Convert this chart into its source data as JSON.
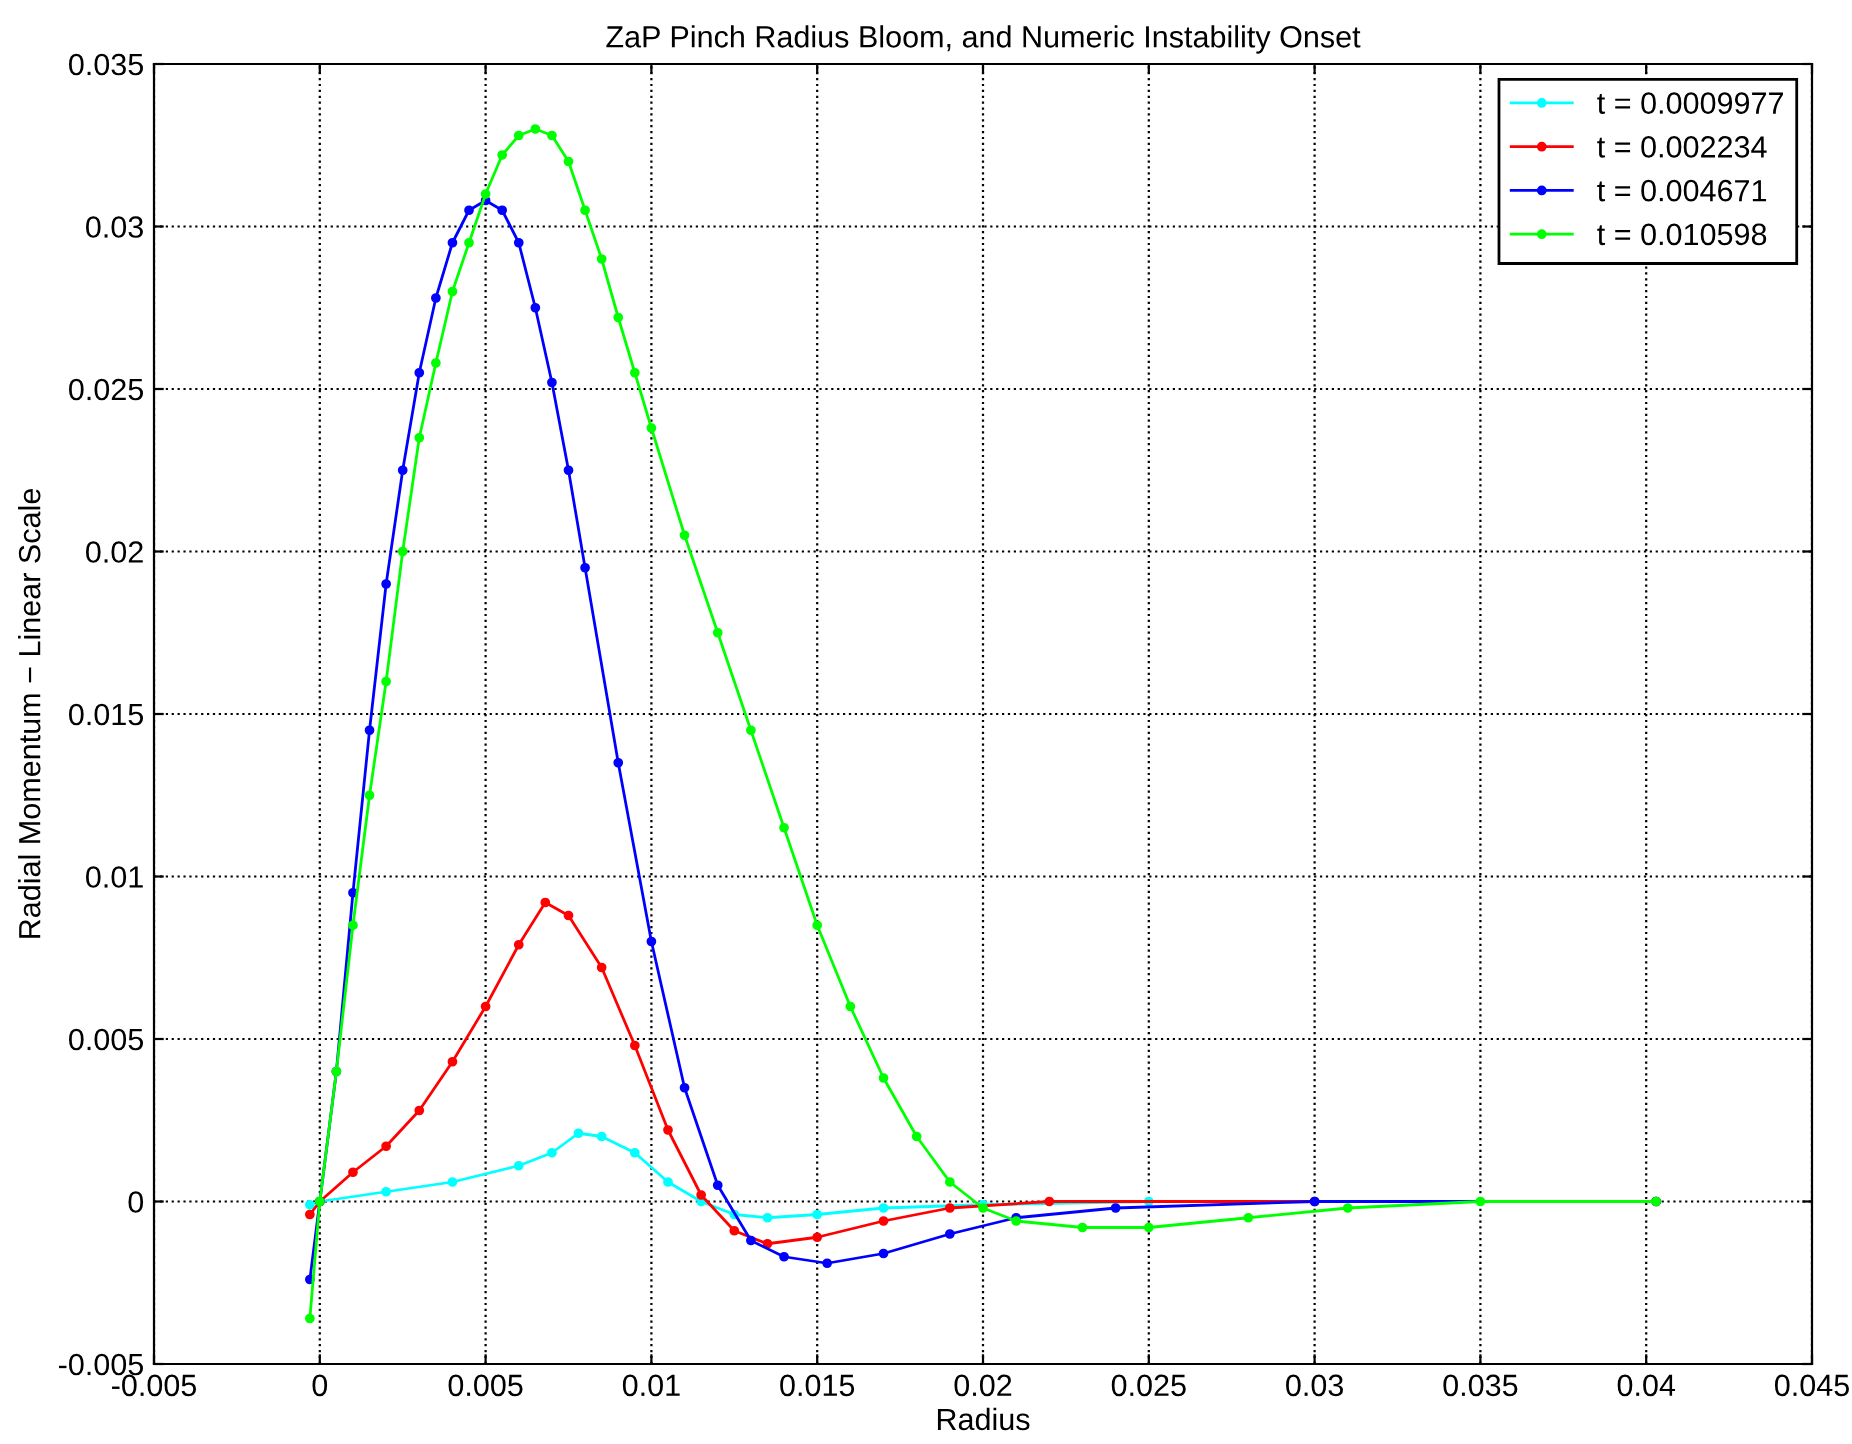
{
  "chart_data": {
    "type": "line",
    "title": "ZaP Pinch Radius Bloom, and Numeric Instability Onset",
    "xlabel": "Radius",
    "ylabel": "Radial Momentum − Linear Scale",
    "xlim": [
      -0.005,
      0.045
    ],
    "xticks": [
      -0.005,
      0,
      0.005,
      0.01,
      0.015,
      0.02,
      0.025,
      0.03,
      0.035,
      0.04,
      0.045
    ],
    "ylim": [
      -0.005,
      0.035
    ],
    "yticks": [
      -0.005,
      0,
      0.005,
      0.01,
      0.015,
      0.02,
      0.025,
      0.03,
      0.035
    ],
    "grid": true,
    "legend": "top right",
    "marker": "circle",
    "line_style": "solid",
    "series": [
      {
        "name": "t = 0.0009977",
        "color": "#00ffff",
        "x": [
          -0.0003,
          0,
          0.002,
          0.004,
          0.006,
          0.007,
          0.0078,
          0.0085,
          0.0095,
          0.0105,
          0.0115,
          0.0125,
          0.0135,
          0.015,
          0.017,
          0.02,
          0.025,
          0.03
        ],
        "values": [
          -0.0001,
          0,
          0.0003,
          0.0006,
          0.0011,
          0.0015,
          0.0021,
          0.002,
          0.0015,
          0.0006,
          0,
          -0.0004,
          -0.0005,
          -0.0004,
          -0.0002,
          -0.0001,
          0,
          0
        ]
      },
      {
        "name": "t = 0.002234",
        "color": "#ff0000",
        "x": [
          -0.0003,
          0,
          0.001,
          0.002,
          0.003,
          0.004,
          0.005,
          0.006,
          0.0068,
          0.0075,
          0.0085,
          0.0095,
          0.0105,
          0.0115,
          0.0125,
          0.0135,
          0.015,
          0.017,
          0.019,
          0.022,
          0.03,
          0.0403
        ],
        "values": [
          -0.0004,
          0,
          0.0009,
          0.0017,
          0.0028,
          0.0043,
          0.006,
          0.0079,
          0.0092,
          0.0088,
          0.0072,
          0.0048,
          0.0022,
          0.0002,
          -0.0009,
          -0.0013,
          -0.0011,
          -0.0006,
          -0.0002,
          0,
          0,
          0
        ]
      },
      {
        "name": "t = 0.004671",
        "color": "#0000ff",
        "x": [
          -0.0003,
          0,
          0.0005,
          0.001,
          0.0015,
          0.002,
          0.0025,
          0.003,
          0.0035,
          0.004,
          0.0045,
          0.005,
          0.0055,
          0.006,
          0.0065,
          0.007,
          0.0075,
          0.008,
          0.009,
          0.01,
          0.011,
          0.012,
          0.013,
          0.014,
          0.0153,
          0.017,
          0.019,
          0.021,
          0.024,
          0.03,
          0.0403
        ],
        "values": [
          -0.0024,
          0,
          0.004,
          0.0095,
          0.0145,
          0.019,
          0.0225,
          0.0255,
          0.0278,
          0.0295,
          0.0305,
          0.0308,
          0.0305,
          0.0295,
          0.0275,
          0.0252,
          0.0225,
          0.0195,
          0.0135,
          0.008,
          0.0035,
          0.0005,
          -0.0012,
          -0.0017,
          -0.0019,
          -0.0016,
          -0.001,
          -0.0005,
          -0.0002,
          0,
          0
        ]
      },
      {
        "name": "t = 0.010598",
        "color": "#00ff00",
        "x": [
          -0.0003,
          0,
          0.0005,
          0.001,
          0.0015,
          0.002,
          0.0025,
          0.003,
          0.0035,
          0.004,
          0.0045,
          0.005,
          0.0055,
          0.006,
          0.0065,
          0.007,
          0.0075,
          0.008,
          0.0085,
          0.009,
          0.0095,
          0.01,
          0.011,
          0.012,
          0.013,
          0.014,
          0.015,
          0.016,
          0.017,
          0.018,
          0.019,
          0.02,
          0.021,
          0.023,
          0.025,
          0.028,
          0.031,
          0.035,
          0.0403
        ],
        "values": [
          -0.0036,
          0,
          0.004,
          0.0085,
          0.0125,
          0.016,
          0.02,
          0.0235,
          0.0258,
          0.028,
          0.0295,
          0.031,
          0.0322,
          0.0328,
          0.033,
          0.0328,
          0.032,
          0.0305,
          0.029,
          0.0272,
          0.0255,
          0.0238,
          0.0205,
          0.0175,
          0.0145,
          0.0115,
          0.0085,
          0.006,
          0.0038,
          0.002,
          0.0006,
          -0.0002,
          -0.0006,
          -0.0008,
          -0.0008,
          -0.0005,
          -0.0002,
          0,
          0
        ]
      }
    ]
  }
}
